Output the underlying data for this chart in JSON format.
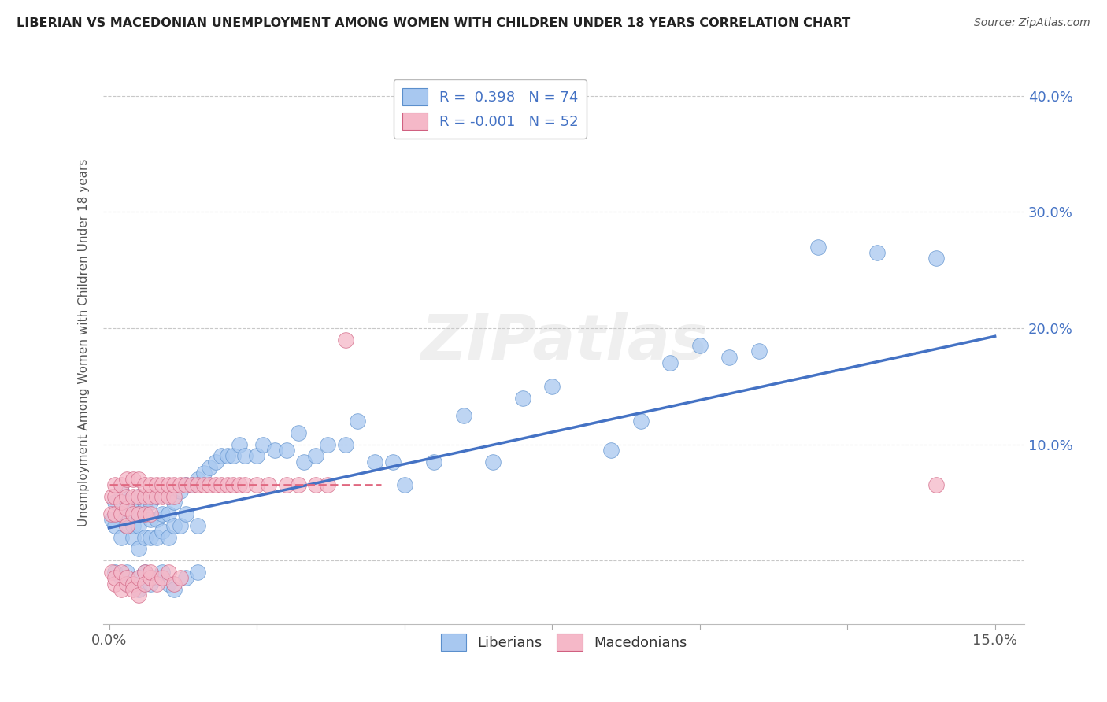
{
  "title": "LIBERIAN VS MACEDONIAN UNEMPLOYMENT AMONG WOMEN WITH CHILDREN UNDER 18 YEARS CORRELATION CHART",
  "source": "Source: ZipAtlas.com",
  "ylabel": "Unemployment Among Women with Children Under 18 years",
  "xlim": [
    -0.001,
    0.155
  ],
  "ylim": [
    -0.055,
    0.43
  ],
  "xticks": [
    0.0,
    0.025,
    0.05,
    0.075,
    0.1,
    0.125,
    0.15
  ],
  "xticklabels": [
    "0.0%",
    "",
    "",
    "",
    "",
    "",
    "15.0%"
  ],
  "yticks": [
    0.0,
    0.1,
    0.2,
    0.3,
    0.4
  ],
  "yticklabels": [
    "",
    "10.0%",
    "20.0%",
    "30.0%",
    "40.0%"
  ],
  "blue_R": "0.398",
  "blue_N": "74",
  "pink_R": "-0.001",
  "pink_N": "52",
  "blue_color": "#A8C8F0",
  "pink_color": "#F5B8C8",
  "blue_edge_color": "#5B8FCC",
  "pink_edge_color": "#D06080",
  "blue_line_color": "#4472C4",
  "pink_line_color": "#E06880",
  "grid_color": "#C8C8C8",
  "watermark": "ZIPatlas",
  "watermark_color": "#CCCCCC",
  "blue_scatter_x": [
    0.0005,
    0.001,
    0.001,
    0.002,
    0.002,
    0.002,
    0.003,
    0.003,
    0.003,
    0.004,
    0.004,
    0.004,
    0.005,
    0.005,
    0.005,
    0.005,
    0.006,
    0.006,
    0.006,
    0.007,
    0.007,
    0.007,
    0.008,
    0.008,
    0.008,
    0.009,
    0.009,
    0.01,
    0.01,
    0.01,
    0.011,
    0.011,
    0.012,
    0.012,
    0.013,
    0.013,
    0.014,
    0.015,
    0.015,
    0.016,
    0.017,
    0.018,
    0.019,
    0.02,
    0.021,
    0.022,
    0.023,
    0.025,
    0.026,
    0.028,
    0.03,
    0.032,
    0.033,
    0.035,
    0.037,
    0.04,
    0.042,
    0.045,
    0.048,
    0.05,
    0.055,
    0.06,
    0.065,
    0.07,
    0.075,
    0.085,
    0.09,
    0.095,
    0.1,
    0.105,
    0.11,
    0.12,
    0.13,
    0.14
  ],
  "blue_scatter_y": [
    0.035,
    0.03,
    0.05,
    0.02,
    0.04,
    0.06,
    0.03,
    0.04,
    0.05,
    0.02,
    0.03,
    0.05,
    0.01,
    0.03,
    0.04,
    0.055,
    0.02,
    0.04,
    0.05,
    0.02,
    0.035,
    0.05,
    0.02,
    0.035,
    0.055,
    0.025,
    0.04,
    0.02,
    0.04,
    0.055,
    0.03,
    0.05,
    0.03,
    0.06,
    0.04,
    0.065,
    0.065,
    0.03,
    0.07,
    0.075,
    0.08,
    0.085,
    0.09,
    0.09,
    0.09,
    0.1,
    0.09,
    0.09,
    0.1,
    0.095,
    0.095,
    0.11,
    0.085,
    0.09,
    0.1,
    0.1,
    0.12,
    0.085,
    0.085,
    0.065,
    0.085,
    0.125,
    0.085,
    0.14,
    0.15,
    0.095,
    0.12,
    0.17,
    0.185,
    0.175,
    0.18,
    0.27,
    0.265,
    0.26
  ],
  "pink_scatter_x": [
    0.0003,
    0.0005,
    0.001,
    0.001,
    0.001,
    0.002,
    0.002,
    0.002,
    0.003,
    0.003,
    0.003,
    0.003,
    0.004,
    0.004,
    0.004,
    0.005,
    0.005,
    0.005,
    0.006,
    0.006,
    0.006,
    0.007,
    0.007,
    0.007,
    0.008,
    0.008,
    0.009,
    0.009,
    0.01,
    0.01,
    0.011,
    0.011,
    0.012,
    0.013,
    0.014,
    0.015,
    0.016,
    0.017,
    0.018,
    0.019,
    0.02,
    0.021,
    0.022,
    0.023,
    0.025,
    0.027,
    0.03,
    0.032,
    0.035,
    0.037,
    0.04,
    0.14
  ],
  "pink_scatter_y": [
    0.04,
    0.055,
    0.04,
    0.055,
    0.065,
    0.04,
    0.05,
    0.065,
    0.03,
    0.045,
    0.055,
    0.07,
    0.04,
    0.055,
    0.07,
    0.04,
    0.055,
    0.07,
    0.04,
    0.055,
    0.065,
    0.04,
    0.055,
    0.065,
    0.055,
    0.065,
    0.055,
    0.065,
    0.055,
    0.065,
    0.055,
    0.065,
    0.065,
    0.065,
    0.065,
    0.065,
    0.065,
    0.065,
    0.065,
    0.065,
    0.065,
    0.065,
    0.065,
    0.065,
    0.065,
    0.065,
    0.065,
    0.065,
    0.065,
    0.065,
    0.19,
    0.065
  ],
  "blue_scatter_y_extra": [
    -0.01,
    -0.015,
    -0.02,
    -0.01,
    -0.02,
    -0.025,
    -0.015,
    -0.01,
    -0.02,
    -0.015,
    -0.01,
    -0.02,
    -0.025,
    -0.015,
    -0.01
  ],
  "blue_scatter_x_extra": [
    0.001,
    0.002,
    0.003,
    0.003,
    0.004,
    0.005,
    0.005,
    0.006,
    0.007,
    0.008,
    0.009,
    0.01,
    0.011,
    0.013,
    0.015
  ],
  "pink_scatter_y_extra": [
    -0.01,
    -0.02,
    -0.015,
    -0.025,
    -0.01,
    -0.02,
    -0.015,
    -0.02,
    -0.025,
    -0.03,
    -0.015,
    -0.01,
    -0.02,
    -0.015,
    -0.01,
    -0.02,
    -0.015,
    -0.01,
    -0.02,
    -0.015
  ],
  "pink_scatter_x_extra": [
    0.0005,
    0.001,
    0.001,
    0.002,
    0.002,
    0.003,
    0.003,
    0.004,
    0.004,
    0.005,
    0.005,
    0.006,
    0.006,
    0.007,
    0.007,
    0.008,
    0.009,
    0.01,
    0.011,
    0.012
  ],
  "blue_trend_x": [
    0.0,
    0.15
  ],
  "blue_trend_y": [
    0.028,
    0.193
  ],
  "pink_trend_x": [
    0.0,
    0.046
  ],
  "pink_trend_y": [
    0.065,
    0.065
  ]
}
